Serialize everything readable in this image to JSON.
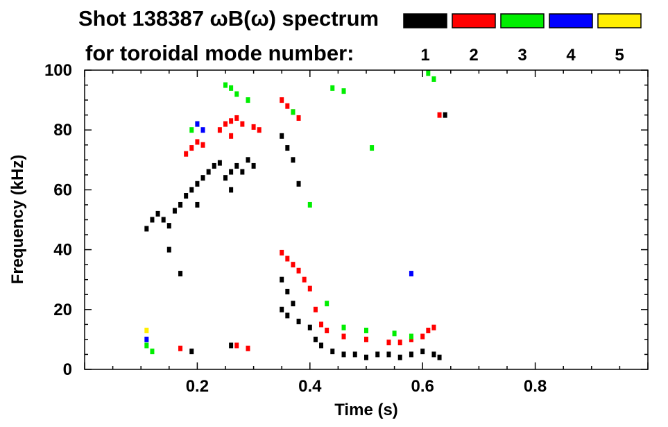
{
  "chart_data": {
    "type": "scatter",
    "title": "Shot 138387 ωB(ω) spectrum",
    "subtitle": "for toroidal mode number:",
    "xlabel": "Time (s)",
    "ylabel": "Frequency (kHz)",
    "xlim": [
      0.0,
      1.0
    ],
    "ylim": [
      0,
      100
    ],
    "x_ticks": [
      0.2,
      0.4,
      0.6,
      0.8
    ],
    "x_tick_labels": [
      "0.2",
      "0.4",
      "0.6",
      "0.8"
    ],
    "y_ticks": [
      0,
      20,
      40,
      60,
      80,
      100
    ],
    "y_tick_labels": [
      "0",
      "20",
      "40",
      "60",
      "80",
      "100"
    ],
    "grid": false,
    "legend_placement": "top-right",
    "series": [
      {
        "name": "1",
        "color": "#000000",
        "points": [
          [
            0.11,
            47
          ],
          [
            0.12,
            50
          ],
          [
            0.13,
            52
          ],
          [
            0.14,
            50
          ],
          [
            0.15,
            48
          ],
          [
            0.16,
            53
          ],
          [
            0.17,
            55
          ],
          [
            0.18,
            58
          ],
          [
            0.19,
            60
          ],
          [
            0.2,
            62
          ],
          [
            0.21,
            64
          ],
          [
            0.22,
            66
          ],
          [
            0.23,
            68
          ],
          [
            0.24,
            69
          ],
          [
            0.25,
            64
          ],
          [
            0.26,
            66
          ],
          [
            0.27,
            68
          ],
          [
            0.28,
            66
          ],
          [
            0.29,
            70
          ],
          [
            0.3,
            68
          ],
          [
            0.15,
            40
          ],
          [
            0.17,
            32
          ],
          [
            0.2,
            55
          ],
          [
            0.26,
            60
          ],
          [
            0.35,
            78
          ],
          [
            0.36,
            74
          ],
          [
            0.37,
            70
          ],
          [
            0.38,
            62
          ],
          [
            0.35,
            20
          ],
          [
            0.36,
            18
          ],
          [
            0.37,
            22
          ],
          [
            0.38,
            16
          ],
          [
            0.4,
            14
          ],
          [
            0.41,
            10
          ],
          [
            0.42,
            8
          ],
          [
            0.44,
            6
          ],
          [
            0.46,
            5
          ],
          [
            0.48,
            5
          ],
          [
            0.5,
            4
          ],
          [
            0.52,
            5
          ],
          [
            0.54,
            5
          ],
          [
            0.56,
            4
          ],
          [
            0.58,
            5
          ],
          [
            0.6,
            6
          ],
          [
            0.62,
            5
          ],
          [
            0.63,
            4
          ],
          [
            0.64,
            85
          ],
          [
            0.19,
            6
          ],
          [
            0.26,
            8
          ],
          [
            0.35,
            30
          ],
          [
            0.36,
            26
          ]
        ]
      },
      {
        "name": "2",
        "color": "#ff0000",
        "points": [
          [
            0.18,
            72
          ],
          [
            0.19,
            74
          ],
          [
            0.2,
            76
          ],
          [
            0.21,
            75
          ],
          [
            0.24,
            80
          ],
          [
            0.25,
            82
          ],
          [
            0.26,
            83
          ],
          [
            0.27,
            84
          ],
          [
            0.28,
            82
          ],
          [
            0.3,
            81
          ],
          [
            0.31,
            80
          ],
          [
            0.35,
            90
          ],
          [
            0.36,
            88
          ],
          [
            0.37,
            86
          ],
          [
            0.38,
            84
          ],
          [
            0.35,
            39
          ],
          [
            0.36,
            37
          ],
          [
            0.37,
            35
          ],
          [
            0.38,
            33
          ],
          [
            0.39,
            30
          ],
          [
            0.4,
            27
          ],
          [
            0.41,
            20
          ],
          [
            0.42,
            15
          ],
          [
            0.43,
            13
          ],
          [
            0.46,
            11
          ],
          [
            0.5,
            10
          ],
          [
            0.54,
            9
          ],
          [
            0.56,
            9
          ],
          [
            0.58,
            10
          ],
          [
            0.6,
            11
          ],
          [
            0.61,
            13
          ],
          [
            0.62,
            14
          ],
          [
            0.63,
            85
          ],
          [
            0.17,
            7
          ],
          [
            0.27,
            8
          ],
          [
            0.29,
            7
          ],
          [
            0.26,
            78
          ]
        ]
      },
      {
        "name": "3",
        "color": "#00ee00",
        "points": [
          [
            0.19,
            80
          ],
          [
            0.2,
            82
          ],
          [
            0.25,
            95
          ],
          [
            0.26,
            94
          ],
          [
            0.27,
            92
          ],
          [
            0.29,
            90
          ],
          [
            0.44,
            94
          ],
          [
            0.46,
            93
          ],
          [
            0.51,
            74
          ],
          [
            0.61,
            99
          ],
          [
            0.62,
            97
          ],
          [
            0.11,
            8
          ],
          [
            0.12,
            6
          ],
          [
            0.4,
            55
          ],
          [
            0.43,
            22
          ],
          [
            0.46,
            14
          ],
          [
            0.5,
            13
          ],
          [
            0.55,
            12
          ],
          [
            0.58,
            11
          ],
          [
            0.37,
            86
          ]
        ]
      },
      {
        "name": "4",
        "color": "#0000ff",
        "points": [
          [
            0.21,
            80
          ],
          [
            0.11,
            10
          ],
          [
            0.58,
            32
          ],
          [
            0.2,
            82
          ]
        ]
      },
      {
        "name": "5",
        "color": "#ffee00",
        "points": [
          [
            0.11,
            13
          ]
        ]
      }
    ]
  },
  "legend": {
    "colors": [
      "#000000",
      "#ff0000",
      "#00ee00",
      "#0000ff",
      "#ffee00"
    ],
    "labels": [
      "1",
      "2",
      "3",
      "4",
      "5"
    ]
  }
}
